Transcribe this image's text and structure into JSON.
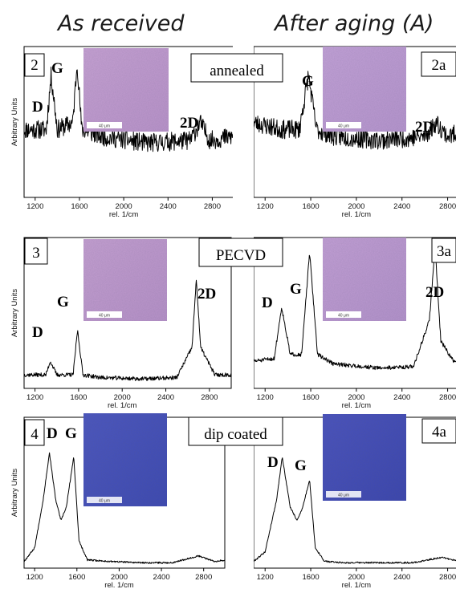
{
  "headers": {
    "left": "As received",
    "right": "After aging (A)"
  },
  "rows": [
    {
      "process_label": "annealed"
    },
    {
      "process_label": "PECVD"
    },
    {
      "process_label": "dip coated"
    }
  ],
  "micrograph_scale_label": "40 μm",
  "chart_data": [
    {
      "type": "line",
      "panel": "2",
      "ylabel": "Arbitrary Units",
      "xlabel": "rel. 1/cm",
      "xlim": [
        1100,
        3000
      ],
      "xticks": [
        1200,
        1600,
        2000,
        2400,
        2800
      ],
      "peak_labels": [
        "D",
        "G",
        "2D"
      ],
      "series": [
        {
          "x": [
            1100,
            1300,
            1345,
            1400,
            1540,
            1580,
            1620,
            1800,
            2200,
            2600,
            2690,
            2780,
            3000
          ],
          "values": [
            0.5,
            0.5,
            0.9,
            0.5,
            0.55,
            1.0,
            0.5,
            0.45,
            0.4,
            0.42,
            0.55,
            0.42,
            0.45
          ]
        }
      ]
    },
    {
      "type": "line",
      "panel": "2a",
      "ylabel": "Arbitrary Units",
      "xlabel": "rel. 1/cm",
      "xlim": [
        1100,
        3000
      ],
      "xticks": [
        1200,
        1600,
        2000,
        2400,
        2800
      ],
      "peak_labels": [
        "G",
        "2D"
      ],
      "series": [
        {
          "x": [
            1100,
            1350,
            1500,
            1580,
            1650,
            1800,
            2200,
            2600,
            2700,
            2800,
            3000
          ],
          "values": [
            0.55,
            0.5,
            0.5,
            0.9,
            0.5,
            0.45,
            0.42,
            0.45,
            0.55,
            0.45,
            0.5
          ]
        }
      ]
    },
    {
      "type": "line",
      "panel": "3",
      "ylabel": "Arbitrary Units",
      "xlabel": "rel. 1/cm",
      "xlim": [
        1100,
        3000
      ],
      "xticks": [
        1200,
        1600,
        2000,
        2400,
        2800
      ],
      "peak_labels": [
        "D",
        "G",
        "2D"
      ],
      "series": [
        {
          "x": [
            1100,
            1300,
            1340,
            1400,
            1550,
            1590,
            1640,
            1800,
            2200,
            2500,
            2640,
            2680,
            2720,
            2850,
            3000
          ],
          "values": [
            0.1,
            0.1,
            0.2,
            0.1,
            0.1,
            0.43,
            0.1,
            0.08,
            0.07,
            0.08,
            0.3,
            0.8,
            0.3,
            0.1,
            0.1
          ]
        }
      ]
    },
    {
      "type": "line",
      "panel": "3a",
      "ylabel": "Arbitrary Units",
      "xlabel": "rel. 1/cm",
      "xlim": [
        1100,
        3000
      ],
      "xticks": [
        1200,
        1600,
        2000,
        2400,
        2800
      ],
      "peak_labels": [
        "D",
        "G",
        "2D"
      ],
      "series": [
        {
          "x": [
            1100,
            1280,
            1345,
            1420,
            1520,
            1590,
            1660,
            1800,
            2200,
            2500,
            2640,
            2690,
            2740,
            2850,
            3000
          ],
          "values": [
            0.2,
            0.22,
            0.6,
            0.25,
            0.25,
            1.0,
            0.25,
            0.18,
            0.15,
            0.16,
            0.5,
            1.05,
            0.35,
            0.2,
            0.2
          ]
        }
      ]
    },
    {
      "type": "line",
      "panel": "4",
      "ylabel": "Arbitrary Units",
      "xlabel": "rel. 1/cm",
      "xlim": [
        1100,
        3000
      ],
      "xticks": [
        1200,
        1600,
        2000,
        2400,
        2800
      ],
      "peak_labels": [
        "D",
        "G"
      ],
      "series": [
        {
          "x": [
            1100,
            1200,
            1280,
            1340,
            1400,
            1450,
            1500,
            1570,
            1620,
            1700,
            1900,
            2200,
            2500,
            2750,
            2900,
            3000
          ],
          "values": [
            0.05,
            0.15,
            0.5,
            0.85,
            0.5,
            0.35,
            0.45,
            0.82,
            0.2,
            0.06,
            0.05,
            0.04,
            0.04,
            0.09,
            0.05,
            0.06
          ]
        }
      ]
    },
    {
      "type": "line",
      "panel": "4a",
      "ylabel": "Arbitrary Units",
      "xlabel": "rel. 1/cm",
      "xlim": [
        1100,
        3000
      ],
      "xticks": [
        1200,
        1600,
        2000,
        2400,
        2800
      ],
      "peak_labels": [
        "D",
        "G"
      ],
      "series": [
        {
          "x": [
            1100,
            1200,
            1300,
            1350,
            1420,
            1480,
            1530,
            1590,
            1640,
            1720,
            1900,
            2200,
            2500,
            2750,
            2900,
            3000
          ],
          "values": [
            0.05,
            0.12,
            0.5,
            0.82,
            0.45,
            0.35,
            0.45,
            0.65,
            0.15,
            0.05,
            0.04,
            0.04,
            0.04,
            0.08,
            0.05,
            0.05
          ]
        }
      ]
    }
  ]
}
